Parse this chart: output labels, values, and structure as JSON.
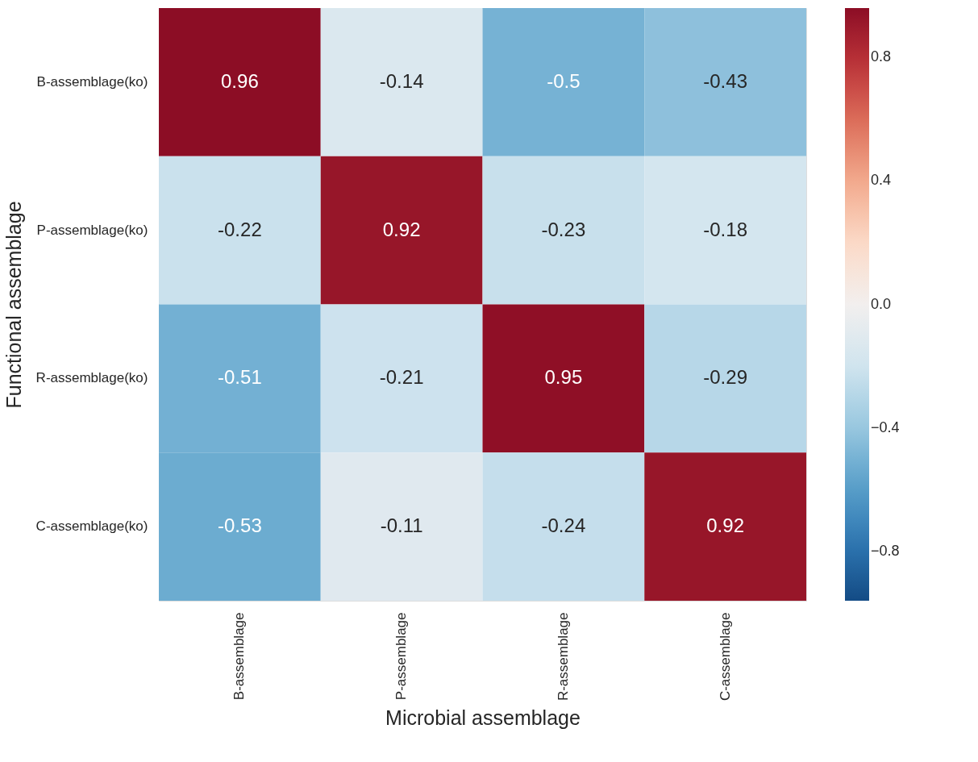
{
  "chart_data": {
    "type": "heatmap",
    "xlabel": "Microbial assemblage",
    "ylabel": "Functional assemblage",
    "categories": [
      "B-assemblage",
      "P-assemblage",
      "R-assemblage",
      "C-assemblage"
    ],
    "y_categories": [
      "B-assemblage(ko)",
      "P-assemblage(ko)",
      "R-assemblage(ko)",
      "C-assemblage(ko)"
    ],
    "cells": [
      [
        0.96,
        -0.14,
        -0.5,
        -0.43
      ],
      [
        -0.22,
        0.92,
        -0.23,
        -0.18
      ],
      [
        -0.51,
        -0.21,
        0.95,
        -0.29
      ],
      [
        -0.53,
        -0.11,
        -0.24,
        0.92
      ]
    ],
    "data_labels": true,
    "clim": [
      -0.96,
      0.96
    ],
    "cticks": [
      {
        "value": -0.8,
        "label": "−0.8"
      },
      {
        "value": -0.4,
        "label": "−0.4"
      },
      {
        "value": 0.0,
        "label": "0.0"
      },
      {
        "value": 0.4,
        "label": "0.4"
      },
      {
        "value": 0.8,
        "label": "0.8"
      }
    ]
  }
}
